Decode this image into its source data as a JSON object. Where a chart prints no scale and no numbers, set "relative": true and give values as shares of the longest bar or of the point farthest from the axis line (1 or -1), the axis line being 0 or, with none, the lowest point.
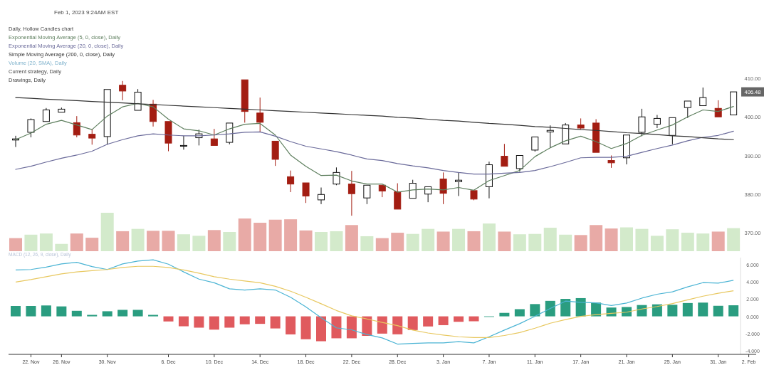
{
  "chart_data": [
    {
      "type": "candlestick",
      "title": "Feb 1, 2023 9:24AM EST",
      "subtitle": "Daily, Hollow Candles chart",
      "categories": [
        null,
        null,
        null,
        null,
        null,
        null,
        null,
        null,
        null,
        null,
        null,
        null,
        null,
        null,
        null,
        null,
        null,
        null,
        null,
        null,
        null,
        null,
        null,
        null,
        null,
        null,
        null,
        null,
        null,
        null,
        null,
        null,
        null,
        null,
        null,
        null,
        null,
        null,
        null,
        null,
        null,
        null,
        null,
        null,
        null,
        null,
        null,
        null,
        null
      ],
      "ohlc": [
        [
          394.0,
          395.1,
          392.2,
          394.3
        ],
        [
          396.0,
          399.6,
          394.7,
          399.3
        ],
        [
          398.8,
          402.3,
          398.8,
          401.8
        ],
        [
          401.2,
          402.4,
          401.2,
          402.0
        ],
        [
          398.5,
          400.2,
          394.7,
          395.3
        ],
        [
          395.5,
          396.9,
          392.8,
          394.5
        ],
        [
          394.9,
          407.1,
          392.8,
          407.1
        ],
        [
          408.2,
          409.3,
          404.3,
          406.7
        ],
        [
          401.7,
          407.2,
          401.5,
          406.4
        ],
        [
          403.3,
          404.4,
          397.5,
          398.8
        ],
        [
          398.8,
          398.8,
          391.1,
          393.2
        ],
        [
          392.4,
          395.1,
          391.5,
          392.6
        ],
        [
          394.6,
          396.7,
          392.6,
          395.6
        ],
        [
          394.3,
          396.9,
          392.6,
          392.6
        ],
        [
          393.4,
          398.4,
          392.9,
          398.4
        ],
        [
          409.6,
          409.6,
          398.5,
          401.4
        ],
        [
          401.0,
          405.0,
          396.1,
          398.6
        ],
        [
          393.7,
          393.7,
          387.3,
          389.0
        ],
        [
          384.5,
          386.1,
          380.5,
          382.6
        ],
        [
          382.9,
          382.9,
          377.7,
          379.5
        ],
        [
          378.5,
          381.7,
          377.4,
          379.9
        ],
        [
          382.6,
          386.9,
          382.3,
          385.6
        ],
        [
          382.6,
          386.0,
          374.4,
          380.1
        ],
        [
          379.0,
          382.3,
          377.4,
          382.3
        ],
        [
          382.3,
          382.3,
          379.2,
          380.8
        ],
        [
          380.6,
          382.8,
          376.1,
          376.1
        ],
        [
          378.9,
          383.7,
          378.7,
          382.8
        ],
        [
          380.0,
          381.9,
          377.9,
          381.9
        ],
        [
          383.9,
          385.6,
          377.4,
          380.2
        ],
        [
          383.2,
          385.5,
          379.5,
          383.6
        ],
        [
          380.9,
          380.9,
          378.4,
          378.7
        ],
        [
          381.9,
          388.4,
          378.9,
          387.6
        ],
        [
          389.8,
          393.0,
          387.2,
          387.2
        ],
        [
          386.6,
          390.0,
          385.8,
          390.0
        ],
        [
          391.4,
          394.8,
          391.0,
          394.8
        ],
        [
          396.1,
          397.8,
          392.0,
          396.5
        ],
        [
          393.0,
          398.4,
          392.9,
          397.9
        ],
        [
          397.9,
          399.6,
          396.8,
          397.1
        ],
        [
          398.4,
          399.4,
          390.8,
          390.8
        ],
        [
          388.7,
          390.0,
          386.8,
          388.1
        ],
        [
          389.4,
          395.3,
          387.7,
          395.3
        ],
        [
          396.0,
          402.1,
          395.0,
          400.0
        ],
        [
          398.1,
          400.5,
          397.1,
          399.6
        ],
        [
          395.2,
          400.0,
          392.9,
          399.8
        ],
        [
          402.4,
          404.1,
          399.7,
          404.1
        ],
        [
          402.9,
          407.6,
          402.9,
          405.0
        ],
        [
          402.2,
          404.3,
          400.0,
          400.0
        ],
        [
          400.5,
          406.48,
          400.3,
          406.48
        ],
        null
      ],
      "series": [
        {
          "type": "line",
          "name": "Exponential Moving Average (5, 0, close), Daily",
          "color": "#5e7f5e",
          "values": [
            394.1,
            395.8,
            398.1,
            399.1,
            397.9,
            396.7,
            400.2,
            402.6,
            403.5,
            402.6,
            399.4,
            396.9,
            396.4,
            395.3,
            396.9,
            398.1,
            398.3,
            395.3,
            390.1,
            387.2,
            384.8,
            384.9,
            383.4,
            382.6,
            382.6,
            380.5,
            381.1,
            381.3,
            381.1,
            381.7,
            381.0,
            383.5,
            384.8,
            386.1,
            389.7,
            392.0,
            393.8,
            395.0,
            393.6,
            391.8,
            393.1,
            395.2,
            396.6,
            397.9,
            400.0,
            401.8,
            401.4,
            402.7,
            null
          ]
        },
        {
          "type": "line",
          "name": "Exponential Moving Average (20, 0, close), Daily",
          "color": "#6a6a9a",
          "values": [
            386.4,
            387.2,
            388.3,
            389.3,
            390.1,
            391.1,
            392.9,
            394.1,
            395.1,
            395.6,
            395.3,
            395.1,
            395.1,
            395.3,
            395.6,
            396.0,
            396.1,
            395.0,
            393.6,
            392.4,
            391.7,
            391.0,
            390.1,
            389.1,
            388.7,
            387.9,
            387.3,
            386.8,
            386.1,
            385.6,
            385.2,
            385.2,
            385.4,
            385.6,
            386.1,
            387.1,
            388.2,
            389.4,
            389.5,
            389.5,
            389.8,
            390.8,
            391.8,
            392.7,
            393.8,
            394.7,
            395.2,
            396.3,
            null
          ]
        },
        {
          "type": "line",
          "name": "Simple Moving Average (200, 0, close), Daily",
          "color": "#333333",
          "values": [
            405.0,
            404.8,
            404.6,
            404.4,
            404.2,
            404.0,
            403.8,
            403.6,
            403.4,
            403.2,
            403.0,
            402.8,
            402.6,
            402.4,
            402.2,
            402.0,
            401.8,
            401.6,
            401.4,
            401.2,
            401.0,
            400.8,
            400.6,
            400.4,
            400.2,
            399.9,
            399.7,
            399.4,
            399.1,
            398.9,
            398.6,
            398.3,
            398.1,
            397.8,
            397.5,
            397.3,
            397.0,
            396.7,
            396.5,
            396.2,
            395.9,
            395.7,
            395.4,
            395.1,
            394.9,
            394.6,
            394.3,
            394.1,
            null
          ]
        }
      ],
      "ylim": [
        370,
        410
      ],
      "yticks": [
        {
          "value": 370,
          "label": "370.00"
        },
        {
          "value": 380,
          "label": "380.00"
        },
        {
          "value": 390,
          "label": "390.00"
        },
        {
          "value": 400,
          "label": "400.00"
        },
        {
          "value": 410,
          "label": "410.00"
        }
      ],
      "annotations": [
        "Current strategy, Daily",
        "Drawings, Daily",
        {
          "text": "406.48",
          "y": 406.48
        }
      ],
      "legend": "top left",
      "tick_labels": "y"
    },
    {
      "type": "bar",
      "title": "Volume (20, SMA), Daily",
      "relative": true,
      "tick_labels": false,
      "categories": [
        null,
        null,
        null,
        null,
        null,
        null,
        null,
        null,
        null,
        null,
        null,
        null,
        null,
        null,
        null,
        null,
        null,
        null,
        null,
        null,
        null,
        null,
        null,
        null,
        null,
        null,
        null,
        null,
        null,
        null,
        null,
        null,
        null,
        null,
        null,
        null,
        null,
        null,
        null,
        null,
        null,
        null,
        null,
        null,
        null,
        null,
        null,
        null,
        null
      ],
      "values": [
        0.34,
        0.43,
        0.46,
        0.19,
        0.46,
        0.35,
        1,
        0.52,
        0.58,
        0.53,
        0.53,
        0.44,
        0.4,
        0.55,
        0.5,
        0.85,
        0.74,
        0.82,
        0.83,
        0.54,
        0.5,
        0.52,
        0.68,
        0.39,
        0.34,
        0.48,
        0.45,
        0.58,
        0.51,
        0.58,
        0.52,
        0.72,
        0.51,
        0.44,
        0.45,
        0.61,
        0.43,
        0.42,
        0.68,
        0.59,
        0.62,
        0.58,
        0.4,
        0.57,
        0.48,
        0.46,
        0.51,
        0.6,
        null
      ],
      "colors": [
        "#e8aaa6",
        "#d3eacb",
        "#d3eacb",
        "#d3eacb",
        "#e8aaa6",
        "#e8aaa6",
        "#d3eacb",
        "#e8aaa6",
        "#d3eacb",
        "#e8aaa6",
        "#e8aaa6",
        "#d3eacb",
        "#d3eacb",
        "#e8aaa6",
        "#d3eacb",
        "#e8aaa6",
        "#e8aaa6",
        "#e8aaa6",
        "#e8aaa6",
        "#e8aaa6",
        "#d3eacb",
        "#d3eacb",
        "#e8aaa6",
        "#d3eacb",
        "#e8aaa6",
        "#e8aaa6",
        "#d3eacb",
        "#d3eacb",
        "#e8aaa6",
        "#d3eacb",
        "#e8aaa6",
        "#d3eacb",
        "#e8aaa6",
        "#d3eacb",
        "#d3eacb",
        "#d3eacb",
        "#d3eacb",
        "#e8aaa6",
        "#e8aaa6",
        "#e8aaa6",
        "#d3eacb",
        "#d3eacb",
        "#d3eacb",
        "#d3eacb",
        "#d3eacb",
        "#d3eacb",
        "#e8aaa6",
        "#d3eacb",
        "#d3eacb"
      ]
    },
    {
      "type": "line",
      "title": "MACD (12, 26, 9, close), Daily",
      "categories": [
        null,
        "22. Nov",
        null,
        "26. Nov",
        null,
        null,
        "30. Nov",
        null,
        null,
        null,
        "6. Dec",
        null,
        null,
        "10. Dec",
        null,
        null,
        "14. Dec",
        null,
        null,
        "18. Dec",
        null,
        null,
        "22. Dec",
        null,
        null,
        "28. Dec",
        null,
        null,
        "3. Jan",
        null,
        null,
        "7. Jan",
        null,
        null,
        "11. Jan",
        null,
        null,
        "17. Jan",
        null,
        null,
        "21. Jan",
        null,
        null,
        "25. Jan",
        null,
        null,
        "31. Jan",
        null,
        "2. Feb"
      ],
      "series": [
        {
          "type": "bar",
          "values": [
            1.2,
            1.2,
            1.26,
            1.15,
            0.64,
            0.17,
            0.59,
            0.75,
            0.75,
            0.17,
            -0.59,
            -1.15,
            -1.31,
            -1.54,
            -1.31,
            -0.92,
            -0.87,
            -1.4,
            -2.09,
            -2.65,
            -2.88,
            -2.54,
            -2.54,
            -2.26,
            -2.0,
            -2.08,
            -1.59,
            -1.17,
            -1.02,
            -0.63,
            -0.57,
            0,
            0.4,
            0.83,
            1.42,
            1.79,
            2.02,
            2.11,
            1.59,
            1.02,
            1.08,
            1.31,
            1.39,
            1.34,
            1.54,
            1.59,
            1.22,
            1.28,
            null
          ],
          "colors": [
            "#2a9d80",
            "#2a9d80",
            "#2a9d80",
            "#2a9d80",
            "#2a9d80",
            "#2a9d80",
            "#2a9d80",
            "#2a9d80",
            "#2a9d80",
            "#2a9d80",
            "#e05a5e",
            "#e05a5e",
            "#e05a5e",
            "#e05a5e",
            "#e05a5e",
            "#e05a5e",
            "#e05a5e",
            "#e05a5e",
            "#e05a5e",
            "#e05a5e",
            "#e05a5e",
            "#e05a5e",
            "#e05a5e",
            "#e05a5e",
            "#e05a5e",
            "#e05a5e",
            "#e05a5e",
            "#e05a5e",
            "#e05a5e",
            "#e05a5e",
            "#e05a5e",
            "#2a9d80",
            "#2a9d80",
            "#2a9d80",
            "#2a9d80",
            "#2a9d80",
            "#2a9d80",
            "#2a9d80",
            "#2a9d80",
            "#2a9d80",
            "#2a9d80",
            "#2a9d80",
            "#2a9d80",
            "#2a9d80",
            "#2a9d80",
            "#2a9d80",
            "#2a9d80",
            "#2a9d80",
            "#2a9d80"
          ]
        },
        {
          "color": "#4bb4d4",
          "values": [
            5.37,
            5.42,
            5.7,
            6.07,
            6.26,
            5.76,
            5.42,
            6.07,
            6.4,
            6.54,
            6.04,
            5.14,
            4.31,
            3.89,
            3.19,
            3.05,
            3.19,
            3.05,
            2.21,
            1.1,
            -0.16,
            -1.33,
            -1.56,
            -2.11,
            -2.5,
            -3.21,
            -3.13,
            -3.07,
            -3.07,
            -2.93,
            -3.07,
            -2.36,
            -1.59,
            -0.85,
            0,
            0.91,
            1.76,
            1.62,
            1.56,
            1.25,
            1.54,
            2.11,
            2.56,
            2.84,
            3.41,
            3.9,
            3.84,
            4.18,
            null
          ]
        },
        {
          "color": "#e8c860",
          "values": [
            3.97,
            4.25,
            4.59,
            4.92,
            5.14,
            5.29,
            5.42,
            5.65,
            5.79,
            5.79,
            5.65,
            5.37,
            5.0,
            4.59,
            4.31,
            4.09,
            3.89,
            3.47,
            2.91,
            2.21,
            1.46,
            0.68,
            0.06,
            -0.3,
            -0.7,
            -1.08,
            -1.59,
            -1.93,
            -2.16,
            -2.36,
            -2.45,
            -2.45,
            -2.22,
            -1.88,
            -1.37,
            -0.8,
            -0.37,
            0,
            0.2,
            0.34,
            0.48,
            0.85,
            1.14,
            1.48,
            1.91,
            2.33,
            2.67,
            2.96,
            null
          ]
        }
      ],
      "ylim": [
        -4.4,
        6.8
      ],
      "yticks": [
        {
          "value": -4,
          "label": "-4.000"
        },
        {
          "value": -2,
          "label": "-2.000"
        },
        {
          "value": 0,
          "label": "0.000"
        },
        {
          "value": 2,
          "label": "2.000"
        },
        {
          "value": 4,
          "label": "4.000"
        },
        {
          "value": 6,
          "label": "6.000"
        }
      ]
    }
  ]
}
